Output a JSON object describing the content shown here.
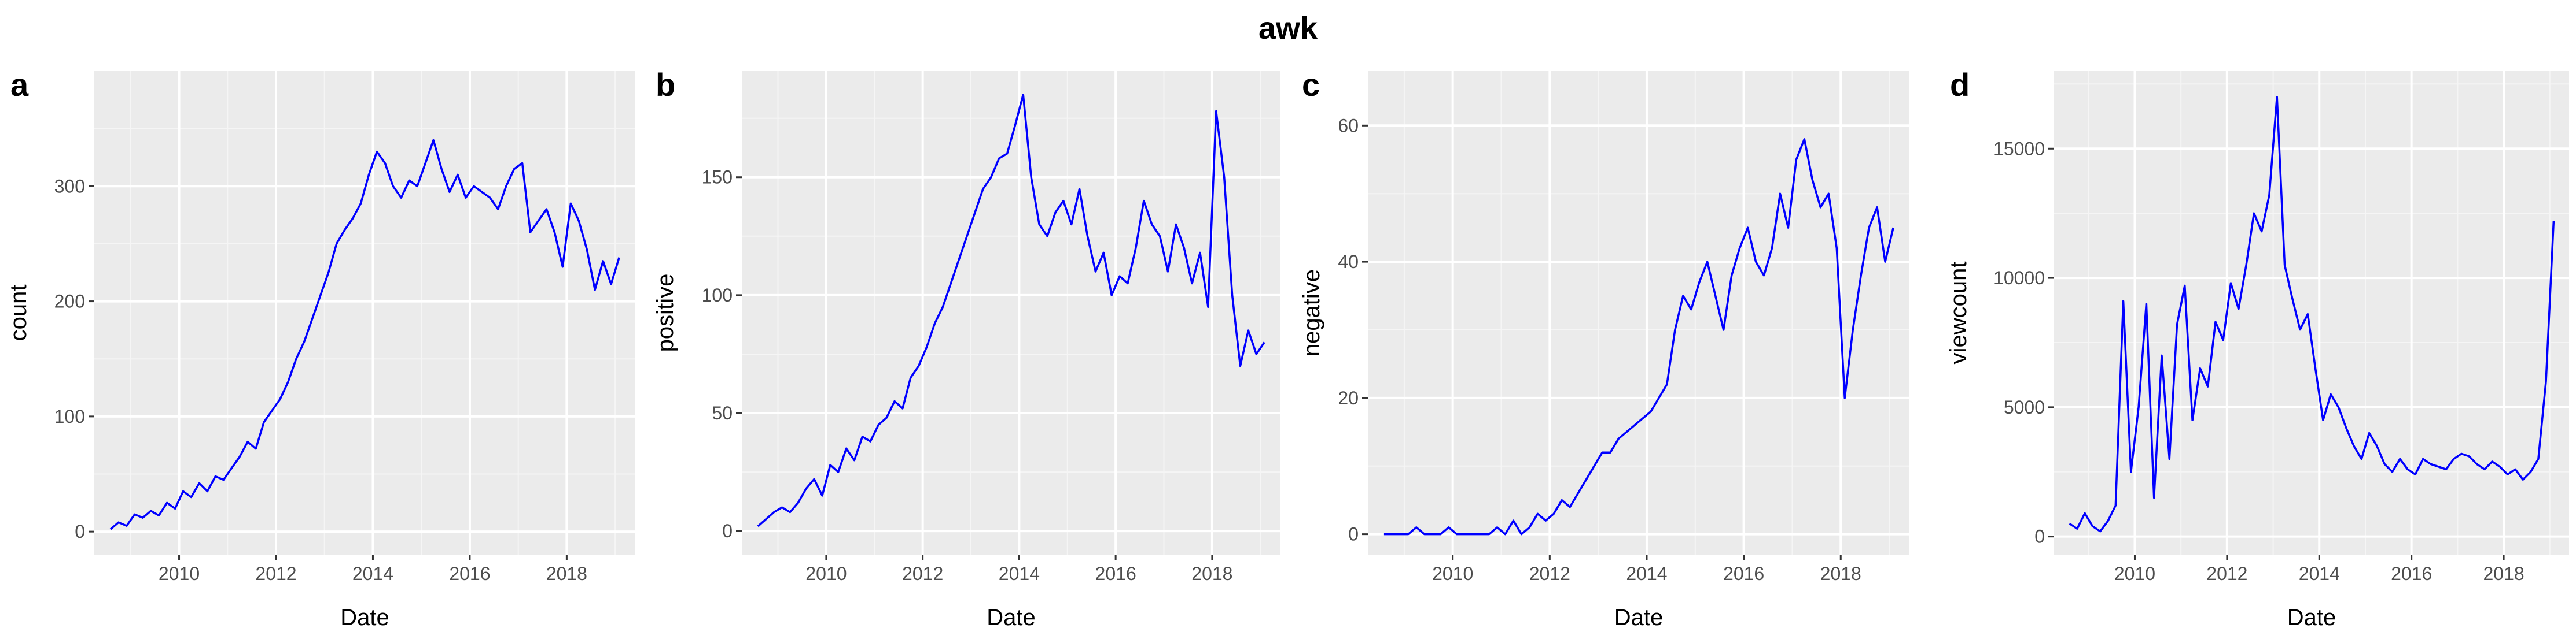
{
  "title": "awk",
  "chart_data": [
    {
      "type": "line",
      "panel": "a",
      "xlabel": "Date",
      "ylabel": "count",
      "x_ticks": [
        "2010",
        "2012",
        "2014",
        "2016",
        "2018"
      ],
      "y_ticks": [
        "0",
        "100",
        "200",
        "300"
      ],
      "xlim": [
        "2008-04",
        "2019-06"
      ],
      "ylim": [
        -20,
        400
      ],
      "line_color": "#0000ff",
      "grid": true,
      "series": [
        {
          "x": [
            "2008-08",
            "2008-10",
            "2008-12",
            "2009-02",
            "2009-04",
            "2009-06",
            "2009-08",
            "2009-10",
            "2009-12",
            "2010-02",
            "2010-04",
            "2010-06",
            "2010-08",
            "2010-10",
            "2010-12",
            "2011-02",
            "2011-04",
            "2011-06",
            "2011-08",
            "2011-10",
            "2011-12",
            "2012-02",
            "2012-04",
            "2012-06",
            "2012-08",
            "2012-10",
            "2012-12",
            "2013-02",
            "2013-04",
            "2013-06",
            "2013-08",
            "2013-10",
            "2013-12",
            "2014-02",
            "2014-04",
            "2014-06",
            "2014-08",
            "2014-10",
            "2014-12",
            "2015-02",
            "2015-04",
            "2015-06",
            "2015-08",
            "2015-10",
            "2015-12",
            "2016-02",
            "2016-04",
            "2016-06",
            "2016-08",
            "2016-10",
            "2016-12",
            "2017-02",
            "2017-04",
            "2017-06",
            "2017-08",
            "2017-10",
            "2017-12",
            "2018-02",
            "2018-04",
            "2018-06",
            "2018-08",
            "2018-10",
            "2018-12",
            "2019-02"
          ],
          "y": [
            2,
            8,
            5,
            15,
            12,
            18,
            14,
            25,
            20,
            35,
            30,
            42,
            35,
            48,
            45,
            55,
            65,
            78,
            72,
            95,
            105,
            115,
            130,
            150,
            165,
            185,
            205,
            225,
            250,
            262,
            272,
            285,
            310,
            330,
            320,
            300,
            290,
            305,
            300,
            320,
            340,
            315,
            295,
            310,
            290,
            300,
            295,
            290,
            280,
            300,
            315,
            320,
            260,
            270,
            280,
            260,
            230,
            285,
            270,
            245,
            210,
            235,
            215,
            238
          ]
        }
      ]
    },
    {
      "type": "line",
      "panel": "b",
      "xlabel": "Date",
      "ylabel": "positive",
      "x_ticks": [
        "2010",
        "2012",
        "2014",
        "2016",
        "2018"
      ],
      "y_ticks": [
        "0",
        "50",
        "100",
        "150"
      ],
      "xlim": [
        "2008-04",
        "2019-06"
      ],
      "ylim": [
        -10,
        195
      ],
      "line_color": "#0000ff",
      "grid": true,
      "series": [
        {
          "x": [
            "2008-08",
            "2008-10",
            "2008-12",
            "2009-02",
            "2009-04",
            "2009-06",
            "2009-08",
            "2009-10",
            "2009-12",
            "2010-02",
            "2010-04",
            "2010-06",
            "2010-08",
            "2010-10",
            "2010-12",
            "2011-02",
            "2011-04",
            "2011-06",
            "2011-08",
            "2011-10",
            "2011-12",
            "2012-02",
            "2012-04",
            "2012-06",
            "2012-08",
            "2012-10",
            "2012-12",
            "2013-02",
            "2013-04",
            "2013-06",
            "2013-08",
            "2013-10",
            "2013-12",
            "2014-02",
            "2014-04",
            "2014-06",
            "2014-08",
            "2014-10",
            "2014-12",
            "2015-02",
            "2015-04",
            "2015-06",
            "2015-08",
            "2015-10",
            "2015-12",
            "2016-02",
            "2016-04",
            "2016-06",
            "2016-08",
            "2016-10",
            "2016-12",
            "2017-02",
            "2017-04",
            "2017-06",
            "2017-08",
            "2017-10",
            "2017-12",
            "2018-02",
            "2018-04",
            "2018-06",
            "2018-08",
            "2018-10",
            "2018-12",
            "2019-02"
          ],
          "y": [
            2,
            5,
            8,
            10,
            8,
            12,
            18,
            22,
            15,
            28,
            25,
            35,
            30,
            40,
            38,
            45,
            48,
            55,
            52,
            65,
            70,
            78,
            88,
            95,
            105,
            115,
            125,
            135,
            145,
            150,
            158,
            160,
            172,
            185,
            150,
            130,
            125,
            135,
            140,
            130,
            145,
            125,
            110,
            118,
            100,
            108,
            105,
            120,
            140,
            130,
            125,
            110,
            130,
            120,
            105,
            118,
            95,
            178,
            150,
            100,
            70,
            85,
            75,
            80
          ]
        }
      ]
    },
    {
      "type": "line",
      "panel": "c",
      "xlabel": "Date",
      "ylabel": "negative",
      "x_ticks": [
        "2010",
        "2012",
        "2014",
        "2016",
        "2018"
      ],
      "y_ticks": [
        "0",
        "20",
        "40",
        "60"
      ],
      "xlim": [
        "2008-04",
        "2019-06"
      ],
      "ylim": [
        -3,
        68
      ],
      "line_color": "#0000ff",
      "grid": true,
      "series": [
        {
          "x": [
            "2008-08",
            "2008-10",
            "2008-12",
            "2009-02",
            "2009-04",
            "2009-06",
            "2009-08",
            "2009-10",
            "2009-12",
            "2010-02",
            "2010-04",
            "2010-06",
            "2010-08",
            "2010-10",
            "2010-12",
            "2011-02",
            "2011-04",
            "2011-06",
            "2011-08",
            "2011-10",
            "2011-12",
            "2012-02",
            "2012-04",
            "2012-06",
            "2012-08",
            "2012-10",
            "2012-12",
            "2013-02",
            "2013-04",
            "2013-06",
            "2013-08",
            "2013-10",
            "2013-12",
            "2014-02",
            "2014-04",
            "2014-06",
            "2014-08",
            "2014-10",
            "2014-12",
            "2015-02",
            "2015-04",
            "2015-06",
            "2015-08",
            "2015-10",
            "2015-12",
            "2016-02",
            "2016-04",
            "2016-06",
            "2016-08",
            "2016-10",
            "2016-12",
            "2017-02",
            "2017-04",
            "2017-06",
            "2017-08",
            "2017-10",
            "2017-12",
            "2018-02",
            "2018-04",
            "2018-06",
            "2018-08",
            "2018-10",
            "2018-12",
            "2019-02"
          ],
          "y": [
            0,
            0,
            0,
            0,
            1,
            0,
            0,
            0,
            1,
            0,
            0,
            0,
            0,
            0,
            1,
            0,
            2,
            0,
            1,
            3,
            2,
            3,
            5,
            4,
            6,
            8,
            10,
            12,
            12,
            14,
            15,
            16,
            17,
            18,
            20,
            22,
            30,
            35,
            33,
            37,
            40,
            35,
            30,
            38,
            42,
            45,
            40,
            38,
            42,
            50,
            45,
            55,
            58,
            52,
            48,
            50,
            42,
            20,
            30,
            38,
            45,
            48,
            40,
            45
          ]
        }
      ]
    },
    {
      "type": "line",
      "panel": "d",
      "xlabel": "Date",
      "ylabel": "viewcount",
      "x_ticks": [
        "2010",
        "2012",
        "2014",
        "2016",
        "2018"
      ],
      "y_ticks": [
        "0",
        "5000",
        "10000",
        "15000"
      ],
      "xlim": [
        "2008-04",
        "2019-06"
      ],
      "ylim": [
        -700,
        18000
      ],
      "line_color": "#0000ff",
      "grid": true,
      "series": [
        {
          "x": [
            "2008-08",
            "2008-10",
            "2008-12",
            "2009-02",
            "2009-04",
            "2009-06",
            "2009-08",
            "2009-10",
            "2009-12",
            "2010-02",
            "2010-04",
            "2010-06",
            "2010-08",
            "2010-10",
            "2010-12",
            "2011-02",
            "2011-04",
            "2011-06",
            "2011-08",
            "2011-10",
            "2011-12",
            "2012-02",
            "2012-04",
            "2012-06",
            "2012-08",
            "2012-10",
            "2012-12",
            "2013-02",
            "2013-04",
            "2013-06",
            "2013-08",
            "2013-10",
            "2013-12",
            "2014-02",
            "2014-04",
            "2014-06",
            "2014-08",
            "2014-10",
            "2014-12",
            "2015-02",
            "2015-04",
            "2015-06",
            "2015-08",
            "2015-10",
            "2015-12",
            "2016-02",
            "2016-04",
            "2016-06",
            "2016-08",
            "2016-10",
            "2016-12",
            "2017-02",
            "2017-04",
            "2017-06",
            "2017-08",
            "2017-10",
            "2017-12",
            "2018-02",
            "2018-04",
            "2018-06",
            "2018-08",
            "2018-10",
            "2018-12",
            "2019-02"
          ],
          "y": [
            500,
            300,
            900,
            400,
            200,
            600,
            1200,
            9100,
            2500,
            5000,
            9000,
            1500,
            7000,
            3000,
            8200,
            9700,
            4500,
            6500,
            5800,
            8300,
            7600,
            9800,
            8800,
            10500,
            12500,
            11800,
            13200,
            17000,
            10500,
            9200,
            8000,
            8600,
            6500,
            4500,
            5500,
            5000,
            4200,
            3500,
            3000,
            4000,
            3500,
            2800,
            2500,
            3000,
            2600,
            2400,
            3000,
            2800,
            2700,
            2600,
            3000,
            3200,
            3100,
            2800,
            2600,
            2900,
            2700,
            2400,
            2600,
            2200,
            2500,
            3000,
            6000,
            12200
          ]
        }
      ]
    }
  ]
}
